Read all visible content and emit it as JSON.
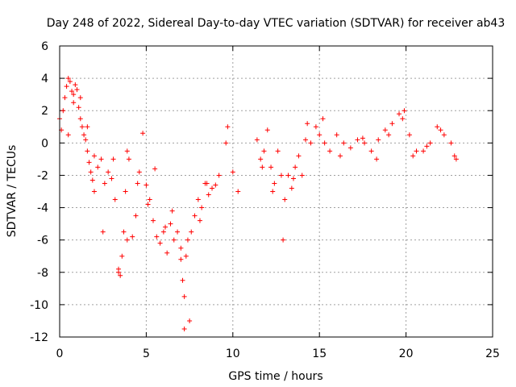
{
  "chart_data": {
    "type": "scatter",
    "title": "Day 248 of 2022, Sidereal Day-to-day VTEC variation (SDTVAR) for receiver ab43",
    "xlabel": "GPS time / hours",
    "ylabel": "SDTVAR / TECUs",
    "xlim": [
      0,
      25
    ],
    "ylim": [
      -12,
      6
    ],
    "xticks": [
      "0",
      "5",
      "10",
      "15",
      "20",
      "25"
    ],
    "yticks": [
      "-12",
      "-10",
      "-8",
      "-6",
      "-4",
      "-2",
      "0",
      "2",
      "4",
      "6"
    ],
    "grid": true,
    "marker": "+",
    "color": "#ff0000",
    "series": [
      {
        "name": "SDTVAR",
        "x": [
          0.0,
          0.1,
          0.2,
          0.3,
          0.4,
          0.5,
          0.6,
          0.7,
          0.8,
          0.9,
          1.0,
          1.1,
          1.2,
          1.3,
          1.4,
          1.5,
          1.6,
          1.7,
          1.8,
          1.9,
          2.0,
          2.2,
          2.4,
          2.6,
          2.8,
          3.0,
          3.2,
          3.4,
          3.5,
          3.6,
          3.7,
          3.8,
          3.9,
          4.0,
          4.2,
          4.4,
          4.6,
          4.8,
          5.0,
          5.2,
          5.4,
          5.6,
          5.8,
          6.0,
          6.2,
          6.4,
          6.6,
          6.8,
          7.0,
          7.1,
          7.2,
          7.3,
          7.4,
          7.6,
          7.8,
          8.0,
          8.2,
          8.4,
          8.6,
          8.8,
          9.0,
          9.2,
          9.6,
          10.0,
          10.3,
          11.4,
          11.6,
          11.8,
          12.0,
          12.2,
          12.4,
          12.6,
          12.8,
          13.0,
          13.2,
          13.4,
          13.6,
          13.8,
          14.0,
          14.2,
          14.5,
          14.8,
          15.0,
          15.3,
          15.6,
          16.0,
          16.4,
          16.8,
          17.2,
          17.6,
          18.0,
          18.4,
          18.8,
          19.2,
          19.6,
          19.9,
          20.2,
          20.6,
          21.0,
          21.4,
          21.8,
          22.2,
          22.6,
          22.9,
          0.5,
          0.8,
          1.2,
          1.6,
          2.0,
          2.5,
          3.1,
          3.4,
          3.9,
          4.5,
          5.1,
          5.5,
          6.1,
          6.5,
          7.0,
          7.2,
          7.5,
          8.1,
          8.5,
          9.7,
          11.7,
          12.3,
          12.9,
          13.5,
          14.3,
          15.2,
          16.2,
          17.5,
          18.3,
          19.0,
          19.8,
          20.4,
          21.2,
          22.0,
          22.8
        ],
        "y": [
          1.5,
          0.8,
          2.0,
          2.8,
          3.5,
          4.0,
          3.8,
          3.2,
          2.5,
          3.6,
          3.3,
          2.2,
          1.5,
          1.0,
          0.5,
          0.2,
          -0.5,
          -1.2,
          -1.8,
          -2.3,
          -0.8,
          -1.5,
          -1.0,
          -2.5,
          -1.8,
          -2.2,
          -3.5,
          -7.8,
          -8.2,
          -7.0,
          -5.5,
          -3.0,
          -0.5,
          -1.0,
          -5.8,
          -4.5,
          -1.8,
          0.6,
          -2.6,
          -3.5,
          -4.8,
          -5.8,
          -6.2,
          -5.5,
          -6.8,
          -5.0,
          -6.0,
          -5.5,
          -7.2,
          -8.5,
          -9.5,
          -7.0,
          -6.0,
          -5.5,
          -4.5,
          -3.5,
          -4.0,
          -2.5,
          -3.2,
          -2.8,
          -2.6,
          -2.0,
          0.0,
          -1.8,
          -3.0,
          0.2,
          -1.0,
          -0.5,
          0.8,
          -1.5,
          -2.5,
          -0.5,
          -2.0,
          -3.5,
          -2.0,
          -2.8,
          -1.5,
          -0.8,
          -2.0,
          0.2,
          0.0,
          1.0,
          0.5,
          0.0,
          -0.5,
          0.5,
          0.0,
          -0.3,
          0.2,
          0.0,
          -0.5,
          0.2,
          0.8,
          1.2,
          1.8,
          2.0,
          0.5,
          -0.5,
          -0.5,
          0.0,
          1.0,
          0.5,
          0.0,
          -1.0,
          0.5,
          3.0,
          2.8,
          1.0,
          -3.0,
          -5.5,
          -1.0,
          -8.0,
          -6.0,
          -2.5,
          -3.8,
          -1.6,
          -5.2,
          -4.2,
          -6.5,
          -11.5,
          -11.0,
          -4.8,
          -2.5,
          1.0,
          -1.5,
          -3.0,
          -6.0,
          -2.2,
          1.2,
          1.5,
          -0.8,
          0.3,
          -1.0,
          0.5,
          1.5,
          -0.8,
          -0.2,
          0.8,
          -0.8
        ]
      }
    ]
  }
}
